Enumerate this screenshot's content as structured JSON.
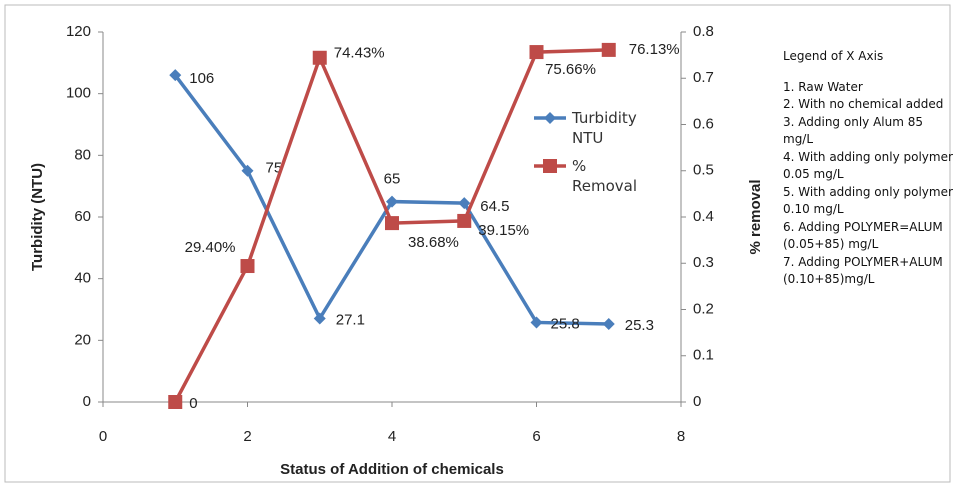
{
  "chart_data": {
    "type": "line",
    "x": [
      1,
      2,
      3,
      4,
      5,
      6,
      7
    ],
    "series": [
      {
        "name": "Turbidity NTU",
        "color": "#4a7ebb",
        "marker": "diamond",
        "values": [
          106,
          75,
          27.1,
          65,
          64.5,
          25.8,
          25.3
        ]
      },
      {
        "name": "% Removal",
        "color": "#be4b48",
        "marker": "square",
        "axis": "y2",
        "values": [
          0,
          0.294,
          0.7443,
          0.3868,
          0.3915,
          0.7566,
          0.7613
        ],
        "value_labels": [
          "0",
          "29.40%",
          "74.43%",
          "38.68%",
          "39.15%",
          "75.66%",
          "76.13%"
        ]
      }
    ],
    "xlim": [
      0,
      8
    ],
    "xticks": [
      0,
      2,
      4,
      6,
      8
    ],
    "ylim": [
      0,
      120
    ],
    "yticks": [
      0,
      20,
      40,
      60,
      80,
      100,
      120
    ],
    "y2lim": [
      0,
      0.8
    ],
    "y2ticks": [
      0,
      0.1,
      0.2,
      0.3,
      0.4,
      0.5,
      0.6,
      0.7,
      0.8
    ],
    "xlabel": "Status of Addition of chemicals",
    "ylabel": "Turbidity (NTU)",
    "y2label": "% removal",
    "legend": "right",
    "x_legend": {
      "title": "Legend of X Axis",
      "items": [
        "1. Raw Water",
        "2. With no chemical added",
        "3. Adding only Alum 85 mg/L",
        "4. With adding only polymer 0.05 mg/L",
        "5. With adding only polymer 0.10 mg/L",
        "6. Adding POLYMER=ALUM (0.05+85) mg/L",
        "7. Adding POLYMER+ALUM (0.10+85)mg/L"
      ]
    }
  }
}
